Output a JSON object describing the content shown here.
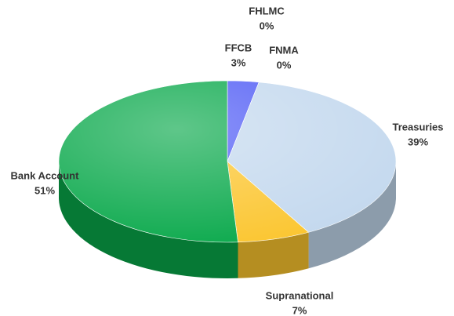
{
  "chart_data": {
    "type": "pie",
    "categories": [
      "FFCB",
      "FHLMC",
      "FNMA",
      "Treasuries",
      "Supranational",
      "Bank Account"
    ],
    "values": [
      3,
      0,
      0,
      39,
      7,
      51
    ],
    "value_labels": [
      "3%",
      "0%",
      "0%",
      "39%",
      "7%",
      "51%"
    ],
    "colors": [
      "#4f5bf5",
      "#1f3a8a",
      "#1f7a8c",
      "#c3d8ee",
      "#fbc52e",
      "#08a84a"
    ]
  }
}
